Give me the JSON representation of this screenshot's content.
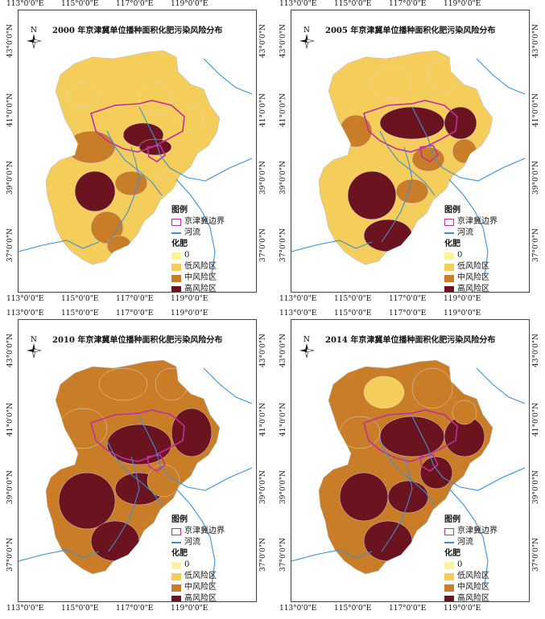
{
  "lon_labels": [
    "113°0'0\"E",
    "115°0'0\"E",
    "117°0'0\"E",
    "119°0'0\"E"
  ],
  "lat_labels": [
    "43°0'0\"N",
    "41°0'0\"N",
    "39°0'0\"N",
    "37°0'0\"N"
  ],
  "north_label": "N",
  "legend": {
    "title": "图例",
    "border_label": "京津冀边界",
    "river_label": "河流",
    "fertilizer_title": "化肥",
    "classes": [
      {
        "label": "0",
        "color": "#fbf3a0"
      },
      {
        "label": "低风险区",
        "color": "#f5cd5a"
      },
      {
        "label": "中风险区",
        "color": "#c97d27"
      },
      {
        "label": "高风险区",
        "color": "#6b1420"
      }
    ]
  },
  "colors": {
    "border": "#c0309c",
    "river": "#3f8fd0"
  },
  "panels": [
    {
      "title": "2000 年京津冀单位播种面积化肥污染风险分布"
    },
    {
      "title": "2005 年京津冀单位播种面积化肥污染风险分布"
    },
    {
      "title": "2010 年京津冀单位播种面积化肥污染风险分布"
    },
    {
      "title": "2014 年京津冀单位播种面积化肥污染风险分布"
    }
  ]
}
